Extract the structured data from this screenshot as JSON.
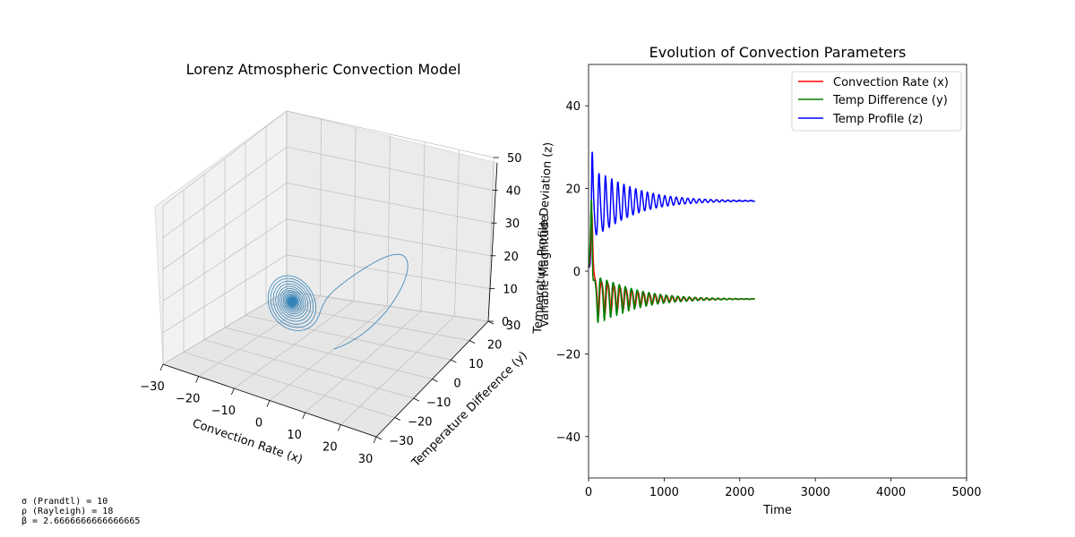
{
  "chart_data": [
    {
      "type": "line3d",
      "title": "Lorenz Atmospheric Convection Model",
      "xlabel": "Convection Rate (x)",
      "ylabel": "Temperature Difference (y)",
      "zlabel": "Temperature Profile Deviation (z)",
      "xlim": [
        -30,
        30
      ],
      "ylim": [
        -30,
        30
      ],
      "zlim": [
        0,
        50
      ],
      "x_ticks": [
        "−30",
        "−20",
        "−10",
        "0",
        "10",
        "20",
        "30"
      ],
      "y_ticks": [
        "−30",
        "−20",
        "−10",
        "0",
        "10",
        "20",
        "30"
      ],
      "z_ticks": [
        "0",
        "10",
        "20",
        "30",
        "40",
        "50"
      ],
      "line_color": "#1f77b4",
      "grid": true,
      "parameters": {
        "sigma": 10,
        "rho": 18,
        "beta": 2.6666666666666665
      }
    },
    {
      "type": "line",
      "title": "Evolution of Convection Parameters",
      "xlabel": "Time",
      "ylabel": "Variable Magnitude",
      "xlim": [
        0,
        5000
      ],
      "ylim": [
        -50,
        50
      ],
      "x_ticks": [
        "0",
        "1000",
        "2000",
        "3000",
        "4000",
        "5000"
      ],
      "y_ticks": [
        "−40",
        "−20",
        "0",
        "20",
        "40"
      ],
      "x_ticks_values": [
        0,
        1000,
        2000,
        3000,
        4000,
        5000
      ],
      "y_ticks_values": [
        -40,
        -20,
        0,
        20,
        40
      ],
      "legend_position": "upper right",
      "series": [
        {
          "name": "Convection Rate (x)",
          "color": "#ff0000"
        },
        {
          "name": "Temp Difference (y)",
          "color": "#008000"
        },
        {
          "name": "Temp Profile (z)",
          "color": "#0000ff"
        }
      ]
    }
  ],
  "params_text": {
    "sigma": "σ (Prandtl) = 10",
    "rho": "ρ (Rayleigh) = 18",
    "beta": "β = 2.6666666666666665"
  }
}
